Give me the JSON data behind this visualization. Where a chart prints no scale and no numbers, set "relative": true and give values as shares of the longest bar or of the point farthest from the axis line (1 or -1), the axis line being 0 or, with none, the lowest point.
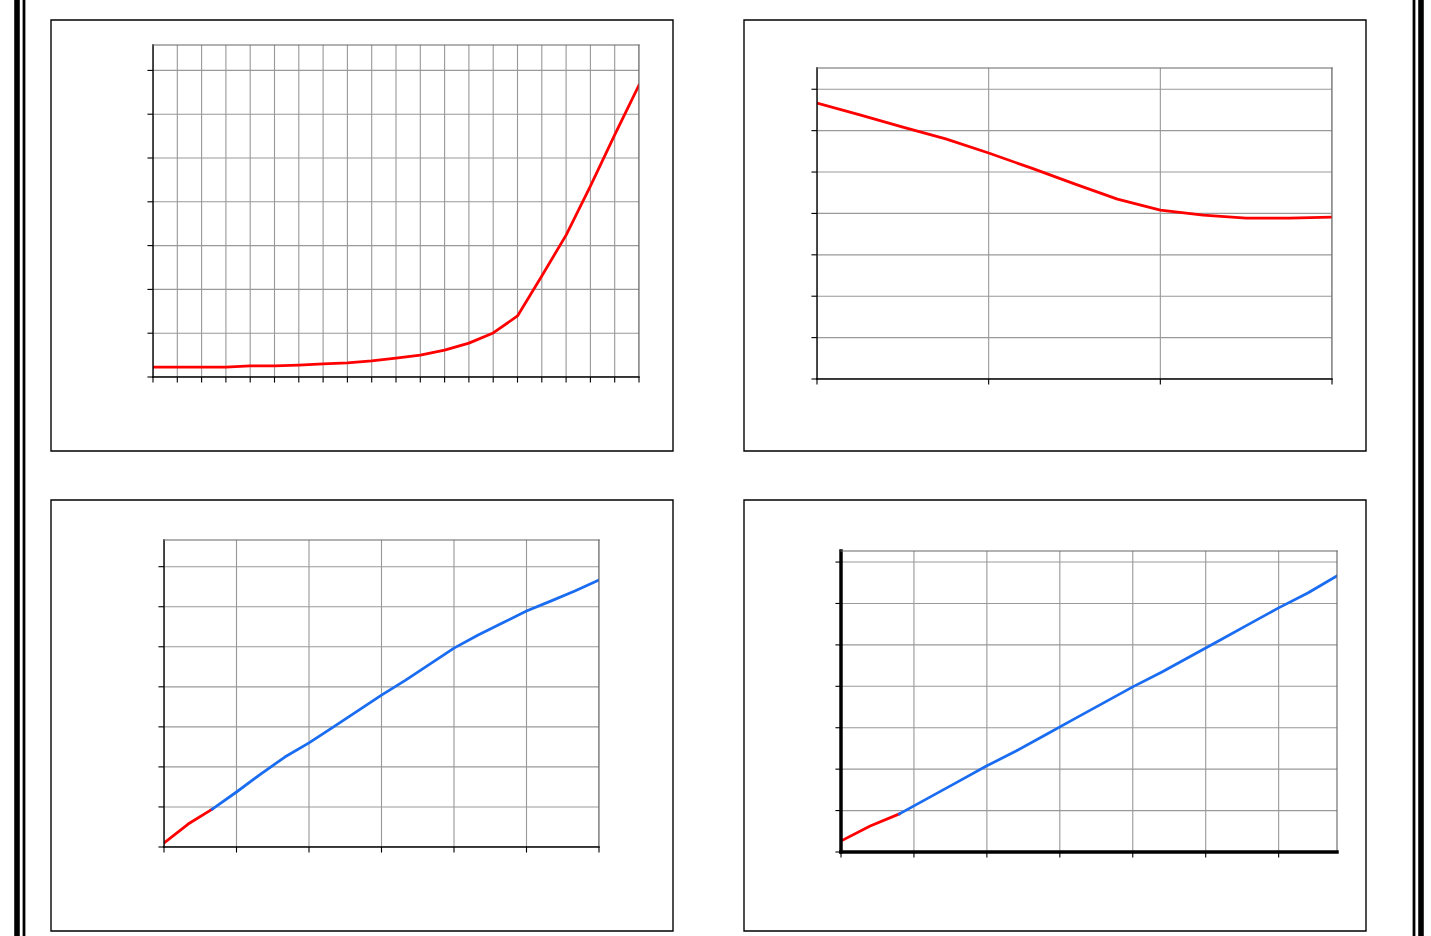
{
  "chart_data": [
    {
      "type": "line",
      "relative": true,
      "grid": true,
      "tick_labels": false,
      "categories": [
        null,
        null,
        null,
        null,
        null,
        null,
        null,
        null,
        null,
        null,
        null,
        null,
        null,
        null,
        null,
        null,
        null,
        null,
        null,
        null,
        null
      ],
      "series": [
        {
          "color": "#ff0000",
          "values": [
            0.034,
            0.034,
            0.034,
            0.034,
            0.038,
            0.038,
            0.041,
            0.045,
            0.048,
            0.055,
            0.065,
            0.075,
            0.092,
            0.116,
            0.151,
            0.209,
            0.346,
            0.486,
            0.654,
            0.829,
            1
          ]
        }
      ]
    },
    {
      "type": "line",
      "relative": true,
      "grid": true,
      "tick_labels": false,
      "categories": [
        null,
        null,
        null,
        null,
        null,
        null,
        null,
        null,
        null,
        null,
        null,
        null,
        null
      ],
      "series": [
        {
          "color": "#ff0000",
          "values": [
            1,
            0.957,
            0.913,
            0.87,
            0.819,
            0.764,
            0.707,
            0.652,
            0.612,
            0.594,
            0.583,
            0.583,
            0.587
          ]
        }
      ]
    },
    {
      "type": "line",
      "relative": true,
      "grid": true,
      "tick_labels": false,
      "categories": [
        null,
        null,
        null,
        null,
        null,
        null,
        null,
        null,
        null,
        null,
        null,
        null,
        null,
        null,
        null,
        null,
        null,
        null,
        null
      ],
      "series": [
        {
          "color": "#ff0000",
          "values": [
            0.015,
            0.086,
            0.142,
            null,
            null,
            null,
            null,
            null,
            null,
            null,
            null,
            null,
            null,
            null,
            null,
            null,
            null,
            null,
            null
          ]
        },
        {
          "color": "#1a6cf0",
          "values": [
            null,
            null,
            0.142,
            0.206,
            0.273,
            0.337,
            0.39,
            0.449,
            0.509,
            0.569,
            0.625,
            0.685,
            0.745,
            0.794,
            0.839,
            0.884,
            0.921,
            0.959,
            1
          ]
        }
      ]
    },
    {
      "type": "line",
      "relative": true,
      "grid": true,
      "tick_labels": false,
      "categories": [
        null,
        null,
        null,
        null,
        null,
        null,
        null,
        null,
        null,
        null,
        null,
        null,
        null,
        null,
        null,
        null,
        null,
        null
      ],
      "series": [
        {
          "color": "#ff0000",
          "values": [
            0.04,
            0.094,
            0.138,
            null,
            null,
            null,
            null,
            null,
            null,
            null,
            null,
            null,
            null,
            null,
            null,
            null,
            null,
            null
          ]
        },
        {
          "color": "#1a6cf0",
          "values": [
            null,
            null,
            0.138,
            0.196,
            0.254,
            0.312,
            0.366,
            0.424,
            0.482,
            0.54,
            0.598,
            0.652,
            0.71,
            0.768,
            0.826,
            0.884,
            0.938,
            1
          ]
        }
      ]
    }
  ]
}
